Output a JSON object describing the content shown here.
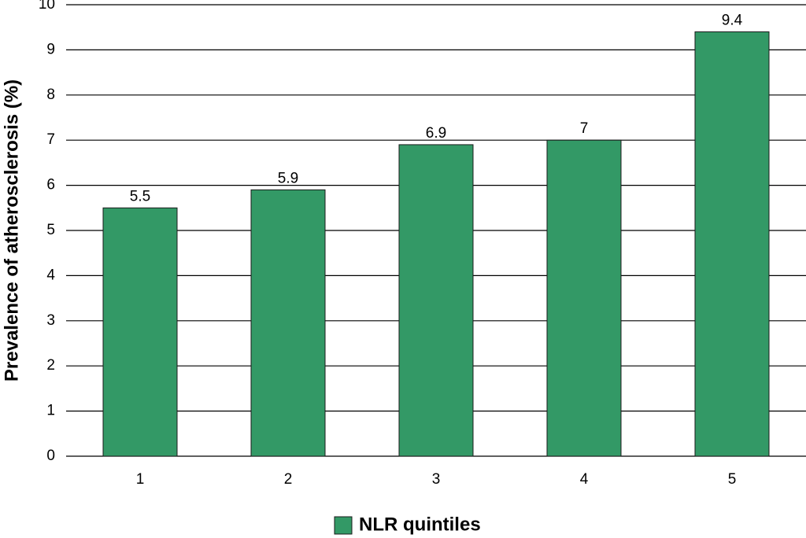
{
  "chart_data": {
    "type": "bar",
    "y_label": "Prevalence of atherosclerosis (%)",
    "categories": [
      "1",
      "2",
      "3",
      "4",
      "5"
    ],
    "series": [
      {
        "name": "NLR quintiles",
        "color": "#339966",
        "values": [
          5.5,
          5.9,
          6.9,
          7,
          9.4
        ]
      }
    ],
    "ylim": [
      0,
      10
    ],
    "yticks": [
      0,
      1,
      2,
      3,
      4,
      5,
      6,
      7,
      8,
      9,
      10
    ],
    "grid": true,
    "legend": "bottom"
  }
}
